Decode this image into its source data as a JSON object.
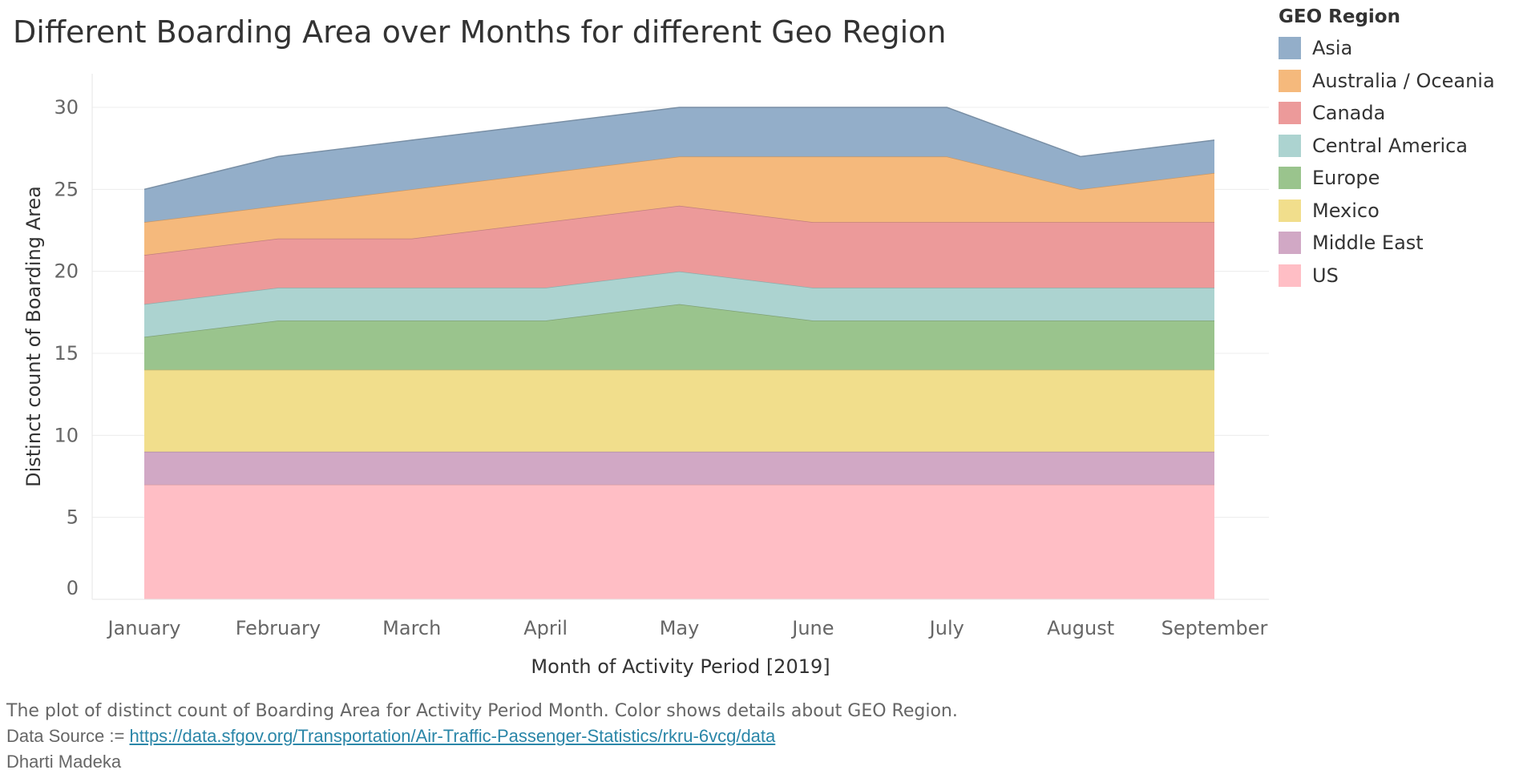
{
  "chart_data": {
    "type": "area",
    "title": "Different Boarding Area over Months for different Geo Region",
    "xlabel": "Month of Activity Period [2019]",
    "ylabel": "Distinct count of Boarding Area",
    "ylim": [
      0,
      32
    ],
    "yticks": [
      0,
      5,
      10,
      15,
      20,
      25,
      30
    ],
    "stacked": true,
    "grid": true,
    "legend_position": "right",
    "legend_title": "GEO Region",
    "categories": [
      "January",
      "February",
      "March",
      "April",
      "May",
      "June",
      "July",
      "August",
      "September"
    ],
    "series": [
      {
        "name": "US",
        "color": "#ffbec5",
        "values": [
          7,
          7,
          7,
          7,
          7,
          7,
          7,
          7,
          7
        ]
      },
      {
        "name": "Middle East",
        "color": "#d1a8c5",
        "values": [
          2,
          2,
          2,
          2,
          2,
          2,
          2,
          2,
          2
        ]
      },
      {
        "name": "Mexico",
        "color": "#f1de8c",
        "values": [
          5,
          5,
          5,
          5,
          5,
          5,
          5,
          5,
          5
        ]
      },
      {
        "name": "Europe",
        "color": "#9ac48d",
        "values": [
          2,
          3,
          3,
          3,
          4,
          3,
          3,
          3,
          3
        ]
      },
      {
        "name": "Central America",
        "color": "#acd3d0",
        "values": [
          2,
          2,
          2,
          2,
          2,
          2,
          2,
          2,
          2
        ]
      },
      {
        "name": "Canada",
        "color": "#ec9a9a",
        "values": [
          3,
          3,
          3,
          4,
          4,
          4,
          4,
          4,
          4
        ]
      },
      {
        "name": "Australia / Oceania",
        "color": "#f5b97c",
        "values": [
          2,
          2,
          3,
          3,
          3,
          4,
          4,
          2,
          3
        ]
      },
      {
        "name": "Asia",
        "color": "#93aec9",
        "values": [
          2,
          3,
          3,
          3,
          3,
          3,
          3,
          2,
          2
        ]
      }
    ]
  },
  "legend_order": [
    "Asia",
    "Australia / Oceania",
    "Canada",
    "Central America",
    "Europe",
    "Mexico",
    "Middle East",
    "US"
  ],
  "footer": {
    "description": "The plot of distinct count of Boarding Area for Activity Period Month.  Color shows details about GEO Region.",
    "source_label": "Data Source := ",
    "source_url": "https://data.sfgov.org/Transportation/Air-Traffic-Passenger-Statistics/rkru-6vcg/data",
    "author": "Dharti Madeka"
  }
}
